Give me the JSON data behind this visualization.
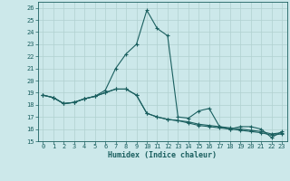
{
  "xlabel": "Humidex (Indice chaleur)",
  "background_color": "#cce8ea",
  "grid_color": "#b0d0d0",
  "line_color": "#1a5f5f",
  "xlim": [
    -0.5,
    23.5
  ],
  "ylim": [
    15,
    26.5
  ],
  "yticks": [
    15,
    16,
    17,
    18,
    19,
    20,
    21,
    22,
    23,
    24,
    25,
    26
  ],
  "xticks": [
    0,
    1,
    2,
    3,
    4,
    5,
    6,
    7,
    8,
    9,
    10,
    11,
    12,
    13,
    14,
    15,
    16,
    17,
    18,
    19,
    20,
    21,
    22,
    23
  ],
  "series": [
    {
      "x": [
        0,
        1,
        2,
        3,
        4,
        5,
        6,
        7,
        8,
        9,
        10,
        11,
        12,
        13,
        14,
        15,
        16,
        17,
        18,
        19,
        20,
        21,
        22,
        23
      ],
      "y": [
        18.8,
        18.6,
        18.1,
        18.2,
        18.5,
        18.7,
        19.2,
        21.0,
        22.2,
        23.0,
        25.8,
        24.3,
        23.7,
        17.0,
        16.9,
        17.5,
        17.7,
        16.2,
        16.0,
        16.2,
        16.2,
        16.0,
        15.3,
        15.8
      ]
    },
    {
      "x": [
        0,
        1,
        2,
        3,
        4,
        5,
        6,
        7,
        8,
        9,
        10,
        11,
        12,
        13,
        14,
        15,
        16,
        17,
        18,
        19,
        20,
        21,
        22,
        23
      ],
      "y": [
        18.8,
        18.6,
        18.1,
        18.2,
        18.5,
        18.7,
        19.0,
        19.3,
        19.3,
        18.8,
        17.3,
        17.0,
        16.8,
        16.7,
        16.6,
        16.4,
        16.3,
        16.2,
        16.1,
        16.0,
        15.9,
        15.8,
        15.6,
        15.7
      ]
    },
    {
      "x": [
        0,
        1,
        2,
        3,
        4,
        5,
        6,
        7,
        8,
        9,
        10,
        11,
        12,
        13,
        14,
        15,
        16,
        17,
        18,
        19,
        20,
        21,
        22,
        23
      ],
      "y": [
        18.8,
        18.6,
        18.1,
        18.2,
        18.5,
        18.7,
        19.0,
        19.3,
        19.3,
        18.8,
        17.3,
        17.0,
        16.8,
        16.7,
        16.5,
        16.3,
        16.2,
        16.1,
        16.0,
        15.9,
        15.8,
        15.7,
        15.5,
        15.6
      ]
    }
  ],
  "marker": "+",
  "markersize": 3.5,
  "linewidth": 0.8,
  "axis_fontsize": 6.0,
  "tick_fontsize": 5.0
}
